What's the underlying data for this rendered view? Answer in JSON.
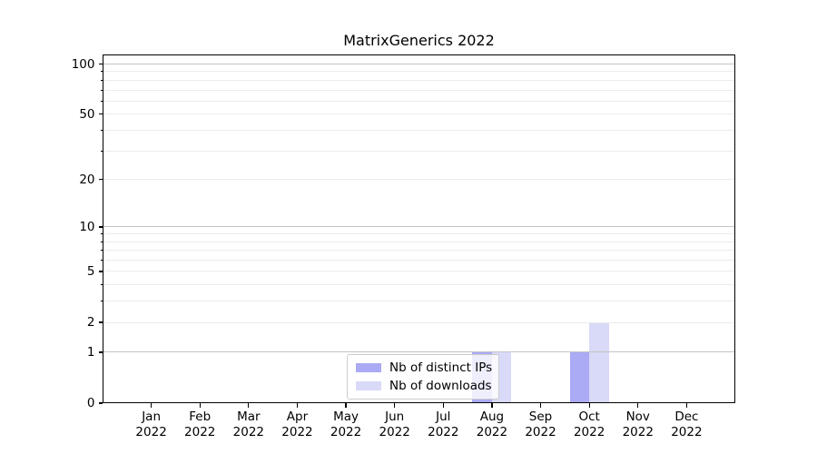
{
  "chart_data": {
    "type": "bar",
    "title": "MatrixGenerics 2022",
    "categories": [
      "Jan",
      "Feb",
      "Mar",
      "Apr",
      "May",
      "Jun",
      "Jul",
      "Aug",
      "Sep",
      "Oct",
      "Nov",
      "Dec"
    ],
    "x_tick_year": "2022",
    "series": [
      {
        "name": "Nb of distinct IPs",
        "color": "#aaaaf5",
        "values": [
          0,
          0,
          0,
          0,
          0,
          0,
          0,
          1,
          0,
          1,
          0,
          0
        ]
      },
      {
        "name": "Nb of downloads",
        "color": "#d9d9f8",
        "values": [
          0,
          0,
          0,
          0,
          0,
          0,
          0,
          1,
          0,
          2,
          0,
          0
        ]
      }
    ],
    "y_axis": {
      "scale": "log1p",
      "tick_labels": [
        0,
        1,
        2,
        5,
        10,
        20,
        50,
        100
      ],
      "major_grid_values": [
        1,
        10,
        100
      ],
      "minor_grid_values": [
        2,
        3,
        4,
        5,
        6,
        7,
        8,
        9,
        20,
        30,
        40,
        50,
        60,
        70,
        80,
        90
      ],
      "ylim": [
        0,
        114
      ]
    },
    "legend": {
      "entries": [
        "Nb of distinct IPs",
        "Nb of downloads"
      ],
      "position": "lower center"
    },
    "colors": {
      "grid_major": "#c4c4c4",
      "grid_minor": "#ebebeb",
      "axis": "#000000",
      "text": "#000000",
      "background": "#ffffff",
      "legend_border": "#cccccc"
    }
  }
}
